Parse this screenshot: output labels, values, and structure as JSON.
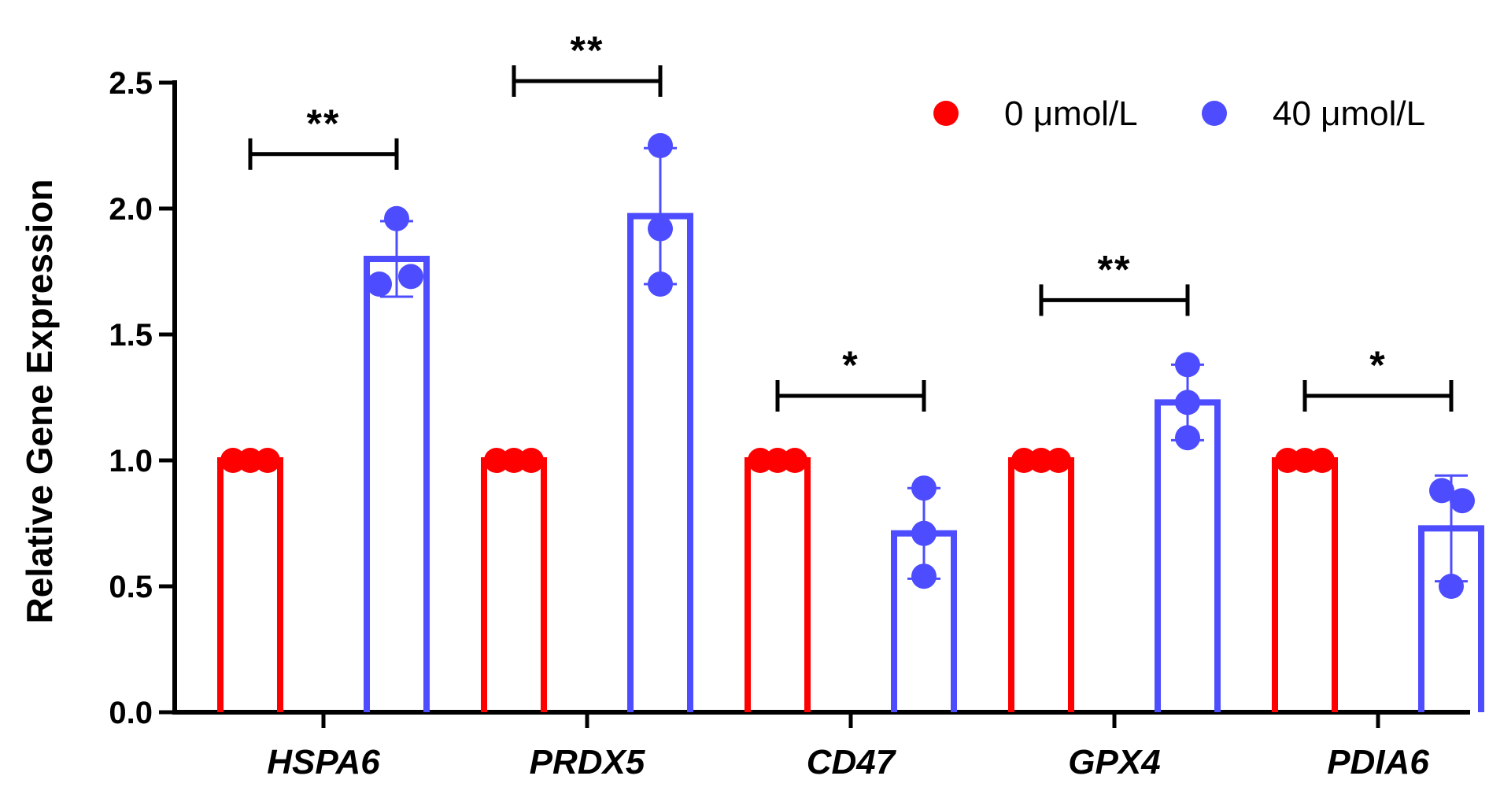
{
  "chart_data": {
    "type": "bar",
    "title": "",
    "xlabel": "",
    "ylabel": "Relative Gene Expression",
    "ylim": [
      0,
      2.5
    ],
    "yticks": [
      "0.0",
      "0.5",
      "1.0",
      "1.5",
      "2.0",
      "2.5"
    ],
    "ytick_values": [
      0,
      0.5,
      1.0,
      1.5,
      2.0,
      2.5
    ],
    "grid": false,
    "legend_position": "top-right",
    "categories": [
      "HSPA6",
      "PRDX5",
      "CD47",
      "GPX4",
      "PDIA6"
    ],
    "series": [
      {
        "name": "0 μmol/L",
        "color": "#ff0000",
        "values": [
          1.0,
          1.0,
          1.0,
          1.0,
          1.0
        ],
        "errors": [
          0,
          0,
          0,
          0,
          0
        ],
        "points": [
          [
            1.0,
            1.0,
            1.0
          ],
          [
            1.0,
            1.0,
            1.0
          ],
          [
            1.0,
            1.0,
            1.0
          ],
          [
            1.0,
            1.0,
            1.0
          ],
          [
            1.0,
            1.0,
            1.0
          ]
        ]
      },
      {
        "name": "40 μmol/L",
        "color": "#4d4dff",
        "values": [
          1.8,
          1.97,
          0.71,
          1.23,
          0.73
        ],
        "errors": [
          0.15,
          0.27,
          0.18,
          0.15,
          0.21
        ],
        "points": [
          [
            1.96,
            1.7,
            1.73
          ],
          [
            2.25,
            1.92,
            1.7
          ],
          [
            0.89,
            0.71,
            0.54
          ],
          [
            1.38,
            1.23,
            1.09
          ],
          [
            0.88,
            0.84,
            0.5
          ]
        ]
      }
    ],
    "significance": [
      "**",
      "**",
      "*",
      "**",
      "*"
    ]
  }
}
